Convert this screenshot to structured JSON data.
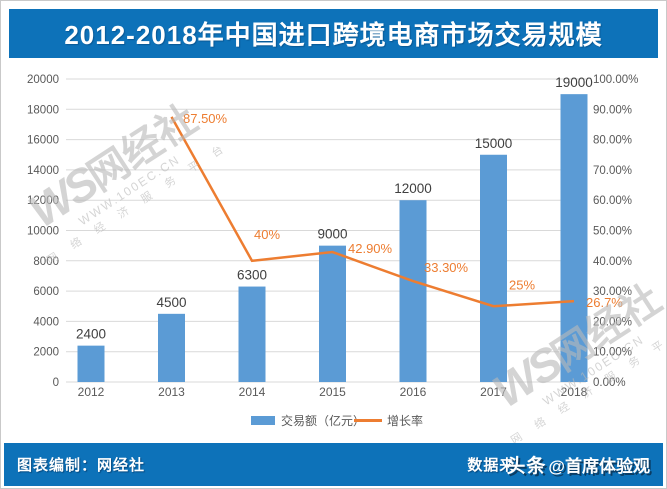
{
  "title": "2012-2018年中国进口跨境电商市场交易规模",
  "theme": {
    "banner_color": "#0d72b9",
    "background": "#ffffff"
  },
  "chart_data": {
    "type": "bar",
    "title": "2012-2018年中国进口跨境电商市场交易规模",
    "categories": [
      "2012",
      "2013",
      "2014",
      "2015",
      "2016",
      "2017",
      "2018"
    ],
    "series": [
      {
        "name": "交易额（亿元）",
        "type": "bar",
        "color": "#5b9bd5",
        "values": [
          2400,
          4500,
          6300,
          9000,
          12000,
          15000,
          19000
        ],
        "labels": [
          "2400",
          "4500",
          "6300",
          "9000",
          "12000",
          "15000",
          "19000"
        ]
      },
      {
        "name": "增长率",
        "type": "line",
        "color": "#ed7d31",
        "values": [
          null,
          87.5,
          40,
          42.9,
          33.3,
          25,
          26.7
        ],
        "labels": [
          null,
          "87.50%",
          "40%",
          "42.90%",
          "33.30%",
          "25%",
          "26.7%"
        ]
      }
    ],
    "left_axis": {
      "min": 0,
      "max": 20000,
      "step": 2000,
      "ticks": [
        "0",
        "2000",
        "4000",
        "6000",
        "8000",
        "10000",
        "12000",
        "14000",
        "16000",
        "18000",
        "20000"
      ]
    },
    "right_axis": {
      "min": 0,
      "max": 100,
      "step": 10,
      "ticks": [
        "0.00%",
        "10.00%",
        "20.00%",
        "30.00%",
        "40.00%",
        "50.00%",
        "60.00%",
        "70.00%",
        "80.00%",
        "90.00%",
        "100.00%"
      ]
    },
    "grid": true,
    "legend_position": "bottom",
    "colors": {
      "grid": "#d9d9d9",
      "axis_text": "#595959",
      "bar_label": "#404040"
    }
  },
  "watermark": {
    "ws": "WS",
    "brand": "网经社",
    "url": "WWW.100EC.CN",
    "tagline": "网 络 经 济 服 务 平 台"
  },
  "footer": {
    "left": "图表编制：网经社",
    "source_prefix": "数据来",
    "overlay_app": "头条",
    "overlay_handle": "@首席体验观"
  }
}
